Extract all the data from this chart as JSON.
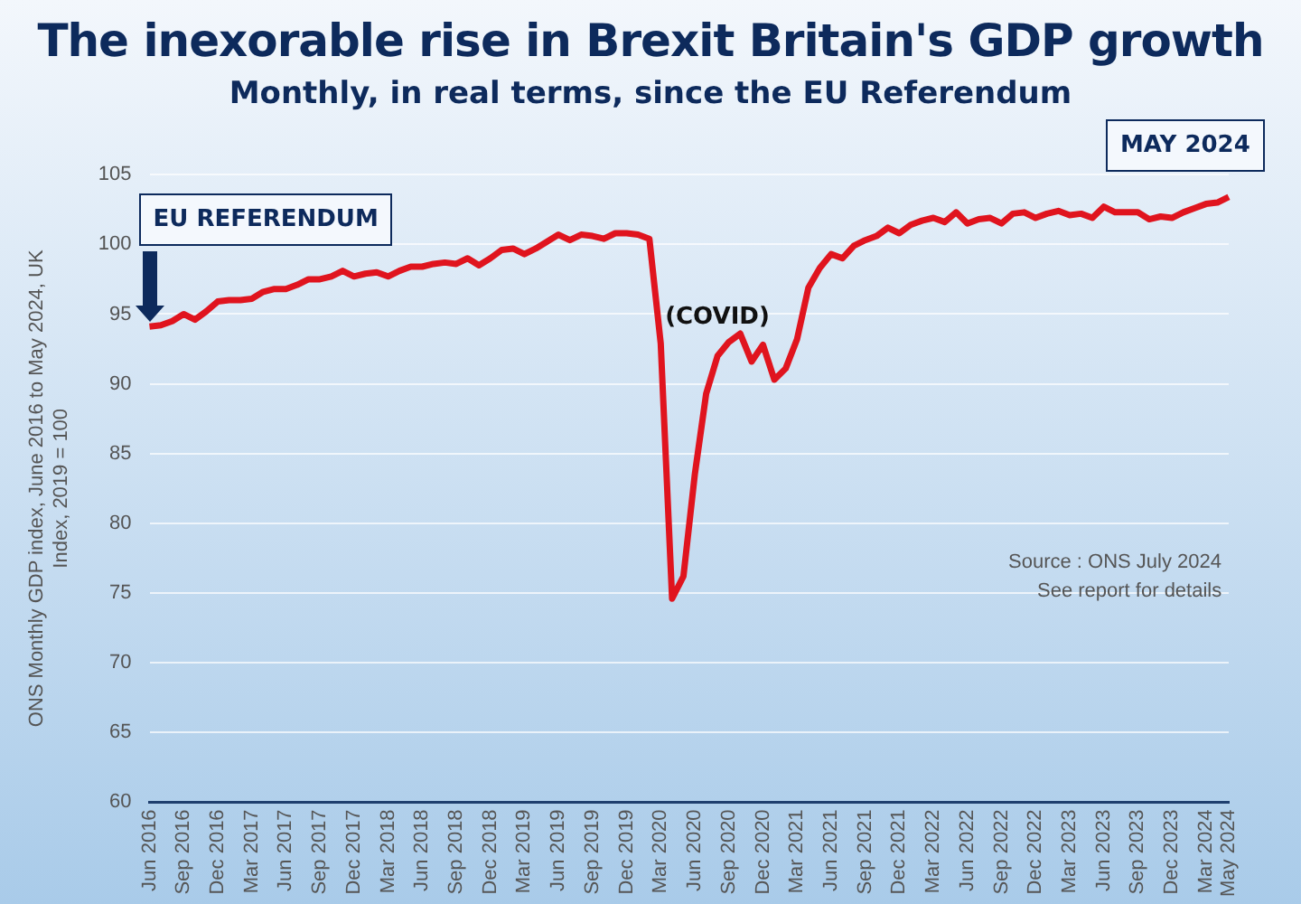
{
  "chart_data": {
    "type": "line",
    "title": "The inexorable rise in Brexit Britain's GDP growth",
    "subtitle": "Monthly, in real terms, since the EU Referendum",
    "ylabel": "ONS Monthly GDP index, June 2016 to May 2024, UK Index, 2019 = 100",
    "categories": [
      "Jun 2016",
      null,
      null,
      "Sep 2016",
      null,
      null,
      "Dec 2016",
      null,
      null,
      "Mar 2017",
      null,
      null,
      "Jun 2017",
      null,
      null,
      "Sep 2017",
      null,
      null,
      "Dec 2017",
      null,
      null,
      "Mar 2018",
      null,
      null,
      "Jun 2018",
      null,
      null,
      "Sep 2018",
      null,
      null,
      "Dec 2018",
      null,
      null,
      "Mar 2019",
      null,
      null,
      "Jun 2019",
      null,
      null,
      "Sep 2019",
      null,
      null,
      "Dec 2019",
      null,
      null,
      "Mar 2020",
      null,
      null,
      "Jun 2020",
      null,
      null,
      "Sep 2020",
      null,
      null,
      "Dec 2020",
      null,
      null,
      "Mar 2021",
      null,
      null,
      "Jun 2021",
      null,
      null,
      "Sep 2021",
      null,
      null,
      "Dec 2021",
      null,
      null,
      "Mar 2022",
      null,
      null,
      "Jun 2022",
      null,
      null,
      "Sep 2022",
      null,
      null,
      "Dec 2022",
      null,
      null,
      "Mar 2023",
      null,
      null,
      "Jun 2023",
      null,
      null,
      "Sep 2023",
      null,
      null,
      "Dec 2023",
      null,
      null,
      "Mar 2024",
      null,
      "May 2024"
    ],
    "series": [
      {
        "color": "#e0141e",
        "values": [
          94.1,
          94.2,
          94.5,
          95.0,
          94.6,
          95.2,
          95.9,
          96.0,
          96.0,
          96.1,
          96.6,
          96.8,
          96.8,
          97.1,
          97.5,
          97.5,
          97.7,
          98.1,
          97.7,
          97.9,
          98.0,
          97.7,
          98.1,
          98.4,
          98.4,
          98.6,
          98.7,
          98.6,
          99.0,
          98.5,
          99.0,
          99.6,
          99.7,
          99.3,
          99.7,
          100.2,
          100.7,
          100.3,
          100.7,
          100.6,
          100.4,
          100.8,
          100.8,
          100.7,
          100.4,
          92.9,
          74.6,
          76.2,
          83.5,
          89.3,
          92.0,
          93.0,
          93.6,
          91.6,
          92.8,
          90.3,
          91.1,
          93.2,
          96.9,
          98.3,
          99.3,
          99.0,
          99.9,
          100.3,
          100.6,
          101.2,
          100.8,
          101.4,
          101.7,
          101.9,
          101.6,
          102.3,
          101.5,
          101.8,
          101.9,
          101.5,
          102.2,
          102.3,
          101.9,
          102.2,
          102.4,
          102.1,
          102.2,
          101.9,
          102.7,
          102.3,
          102.3,
          102.3,
          101.8,
          102.0,
          101.9,
          102.3,
          102.6,
          102.9,
          103.0,
          103.4
        ]
      }
    ],
    "ylim": [
      60,
      105
    ],
    "yticks": [
      60,
      65,
      70,
      75,
      80,
      85,
      90,
      95,
      100,
      105
    ],
    "grid": "y",
    "legend": false,
    "marker": "none",
    "line_style": "solid",
    "annotations": [
      "EU REFERENDUM",
      "MAY 2024",
      "(COVID)",
      "Source : ONS July 2024",
      "See report for details"
    ]
  }
}
